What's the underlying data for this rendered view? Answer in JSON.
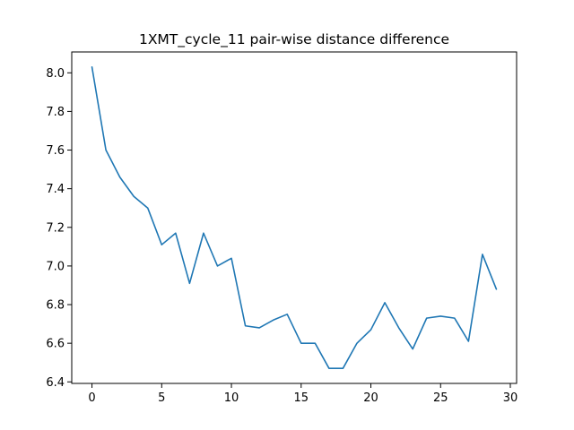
{
  "chart_data": {
    "type": "line",
    "title": "1XMT_cycle_11 pair-wise distance difference",
    "xlabel": "",
    "ylabel": "",
    "xlim": [
      -1.45,
      30.45
    ],
    "ylim": [
      6.392,
      8.108
    ],
    "x_ticks": [
      0,
      5,
      10,
      15,
      20,
      25,
      30
    ],
    "y_ticks": [
      6.4,
      6.6,
      6.8,
      7.0,
      7.2,
      7.4,
      7.6,
      7.8,
      8.0
    ],
    "x_tick_labels": [
      "0",
      "5",
      "10",
      "15",
      "20",
      "25",
      "30"
    ],
    "y_tick_labels": [
      "6.4",
      "6.6",
      "6.8",
      "7.0",
      "7.2",
      "7.4",
      "7.6",
      "7.8",
      "8.0"
    ],
    "grid": false,
    "series": [
      {
        "color": "#1f77b4",
        "x": [
          0,
          1,
          2,
          3,
          4,
          5,
          6,
          7,
          8,
          9,
          10,
          11,
          12,
          13,
          14,
          15,
          16,
          17,
          18,
          19,
          20,
          21,
          22,
          23,
          24,
          25,
          26,
          27,
          28,
          29
        ],
        "values": [
          8.03,
          7.6,
          7.46,
          7.36,
          7.3,
          7.11,
          7.17,
          6.91,
          7.17,
          7.0,
          7.04,
          6.69,
          6.68,
          6.72,
          6.75,
          6.6,
          6.6,
          6.47,
          6.47,
          6.6,
          6.67,
          6.81,
          6.68,
          6.57,
          6.73,
          6.74,
          6.73,
          6.61,
          7.06,
          6.88
        ]
      }
    ]
  }
}
